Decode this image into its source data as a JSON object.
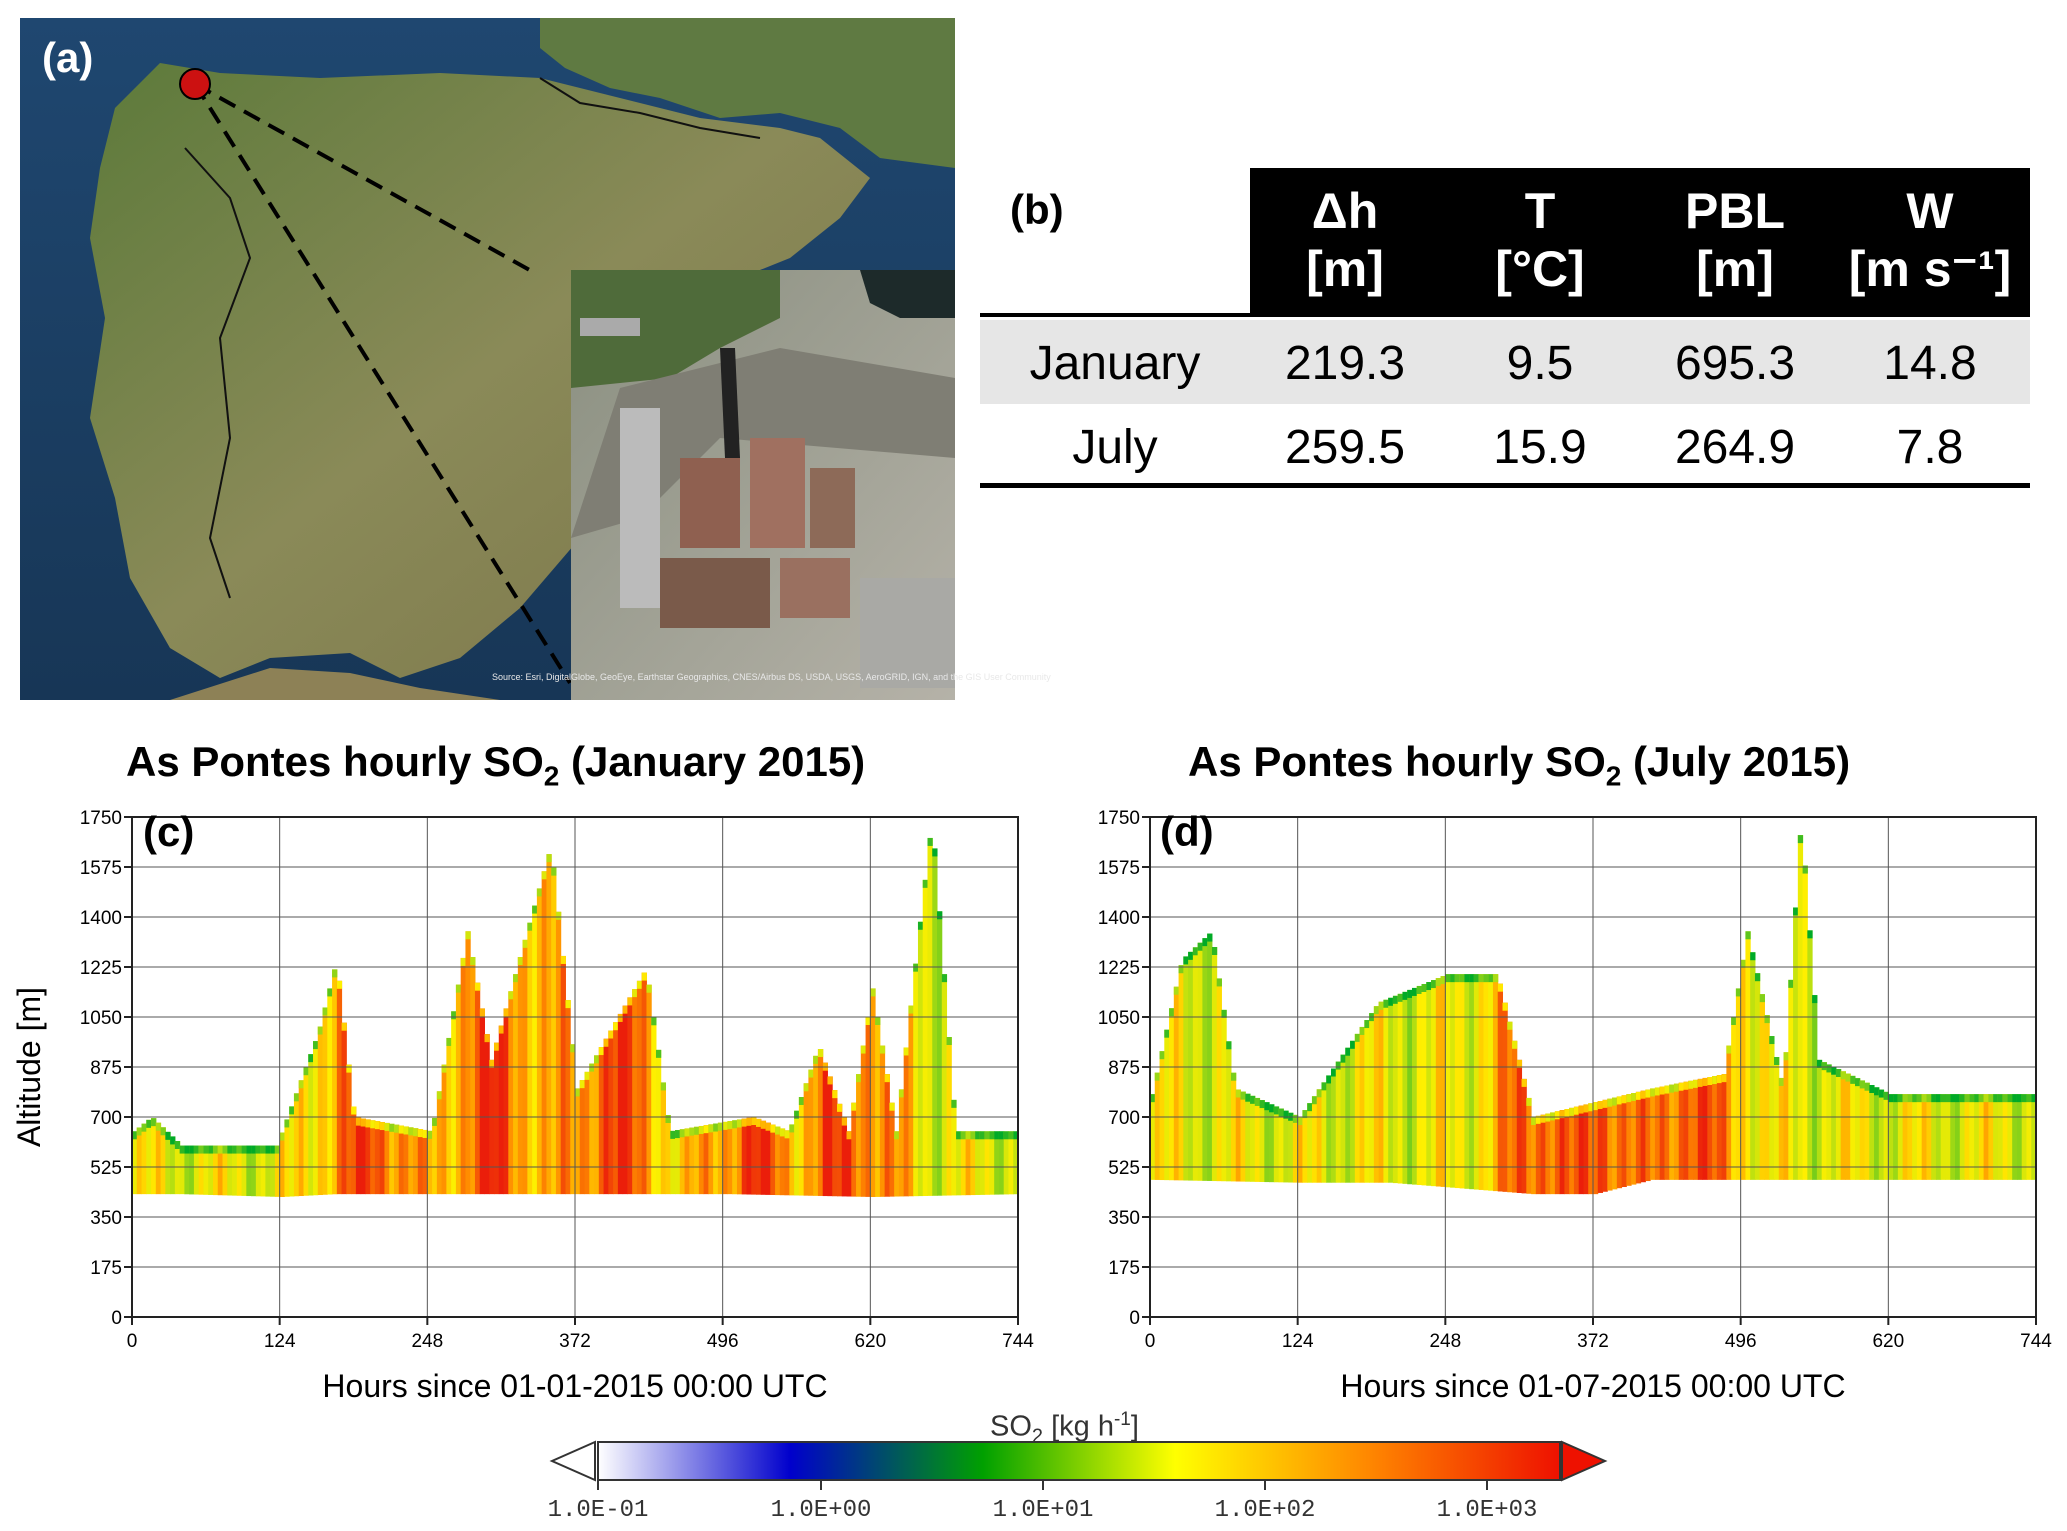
{
  "panels": {
    "a": "(a)",
    "b": "(b)",
    "c": "(c)",
    "d": "(d)"
  },
  "map": {
    "credit": "Source: Esri, DigitalGlobe, GeoEye, Earthstar Geographics, CNES/Airbus DS, USDA, USGS, AeroGRID, IGN, and the GIS User Community",
    "marker_color": "#cc1111"
  },
  "table": {
    "headers": [
      {
        "line1": "Δh",
        "line2": "[m]"
      },
      {
        "line1": "T",
        "line2": "[°C]"
      },
      {
        "line1": "PBL",
        "line2": "[m]"
      },
      {
        "line1": "W",
        "line2": "[m s⁻¹]"
      }
    ],
    "rows": [
      {
        "label": "January",
        "values": [
          "219.3",
          "9.5",
          "695.3",
          "14.8"
        ]
      },
      {
        "label": "July",
        "values": [
          "259.5",
          "15.9",
          "264.9",
          "7.8"
        ]
      }
    ]
  },
  "chart_data": [
    {
      "type": "heatmap",
      "title_pre": "As Pontes hourly SO",
      "title_sub": "2",
      "title_post": " (January 2015)",
      "xlabel": "Hours since  01-01-2015  00:00 UTC",
      "ylabel": "Altitude [m]",
      "xlim": [
        0,
        744
      ],
      "ylim": [
        0,
        1750
      ],
      "xticks": [
        0,
        124,
        248,
        372,
        496,
        620,
        744
      ],
      "yticks": [
        0,
        175,
        350,
        525,
        700,
        875,
        1050,
        1225,
        1400,
        1575,
        1750
      ],
      "grid": true,
      "plume_base": [
        [
          0,
          430
        ],
        [
          40,
          430
        ],
        [
          124,
          420
        ],
        [
          170,
          430
        ],
        [
          248,
          430
        ],
        [
          372,
          430
        ],
        [
          500,
          430
        ],
        [
          620,
          420
        ],
        [
          744,
          430
        ]
      ],
      "plume_top": [
        [
          0,
          650
        ],
        [
          15,
          700
        ],
        [
          40,
          600
        ],
        [
          120,
          600
        ],
        [
          155,
          1000
        ],
        [
          170,
          1250
        ],
        [
          185,
          700
        ],
        [
          250,
          650
        ],
        [
          280,
          1350
        ],
        [
          300,
          900
        ],
        [
          350,
          1650
        ],
        [
          372,
          800
        ],
        [
          430,
          1220
        ],
        [
          450,
          650
        ],
        [
          520,
          700
        ],
        [
          550,
          650
        ],
        [
          575,
          950
        ],
        [
          600,
          650
        ],
        [
          620,
          1150
        ],
        [
          640,
          650
        ],
        [
          670,
          1750
        ],
        [
          690,
          650
        ],
        [
          744,
          650
        ]
      ],
      "intensity_peaks": [
        200,
        300,
        400,
        520,
        600
      ]
    },
    {
      "type": "heatmap",
      "title_pre": "As Pontes hourly SO",
      "title_sub": "2",
      "title_post": " (July 2015)",
      "xlabel": "Hours since  01-07-2015  00:00 UTC",
      "ylabel": "",
      "xlim": [
        0,
        744
      ],
      "ylim": [
        0,
        1750
      ],
      "xticks": [
        0,
        124,
        248,
        372,
        496,
        620,
        744
      ],
      "yticks": [
        0,
        175,
        350,
        525,
        700,
        875,
        1050,
        1225,
        1400,
        1575,
        1750
      ],
      "grid": true,
      "plume_base": [
        [
          0,
          480
        ],
        [
          124,
          470
        ],
        [
          200,
          470
        ],
        [
          320,
          430
        ],
        [
          372,
          430
        ],
        [
          420,
          480
        ],
        [
          744,
          480
        ]
      ],
      "plume_top": [
        [
          0,
          780
        ],
        [
          25,
          1250
        ],
        [
          50,
          1350
        ],
        [
          70,
          800
        ],
        [
          124,
          700
        ],
        [
          190,
          1100
        ],
        [
          248,
          1200
        ],
        [
          290,
          1200
        ],
        [
          320,
          700
        ],
        [
          420,
          800
        ],
        [
          480,
          850
        ],
        [
          500,
          1350
        ],
        [
          530,
          800
        ],
        [
          545,
          1750
        ],
        [
          560,
          900
        ],
        [
          620,
          780
        ],
        [
          744,
          780
        ]
      ],
      "intensity_peaks": [
        330,
        380,
        450
      ]
    }
  ],
  "colorbar": {
    "title": "SO",
    "title_sub": "2",
    "unit": "[kg h",
    "unit_sup": "-1",
    "unit_close": "]",
    "ticks": [
      "1.0E-01",
      "1.0E+00",
      "1.0E+01",
      "1.0E+02",
      "1.0E+03"
    ],
    "colors": [
      "#ffffff",
      "#0000cc",
      "#00a000",
      "#ffff00",
      "#ff8800",
      "#ee1100"
    ]
  }
}
